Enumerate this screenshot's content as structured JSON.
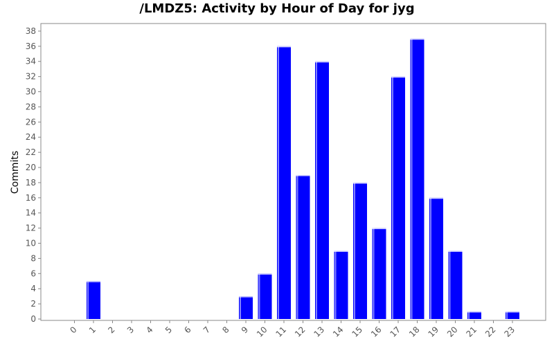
{
  "chart_data": {
    "type": "bar",
    "title": "/LMDZ5: Activity by Hour of Day for jyg",
    "xlabel": "",
    "ylabel": "Commits",
    "categories": [
      "0",
      "1",
      "2",
      "3",
      "4",
      "5",
      "6",
      "7",
      "8",
      "9",
      "10",
      "11",
      "12",
      "13",
      "14",
      "15",
      "16",
      "17",
      "18",
      "19",
      "20",
      "21",
      "22",
      "23"
    ],
    "values": [
      0,
      5,
      0,
      0,
      0,
      0,
      0,
      0,
      0,
      3,
      6,
      36,
      19,
      34,
      9,
      18,
      12,
      32,
      37,
      16,
      9,
      1,
      0,
      1
    ],
    "ylim": [
      0,
      39
    ],
    "yticks": [
      0,
      2,
      4,
      6,
      8,
      10,
      12,
      14,
      16,
      18,
      20,
      22,
      24,
      26,
      28,
      30,
      32,
      34,
      36,
      38
    ],
    "grid": false,
    "bar_color": "#0000ff",
    "bar_highlight": "#8080ff",
    "legend": "none"
  }
}
